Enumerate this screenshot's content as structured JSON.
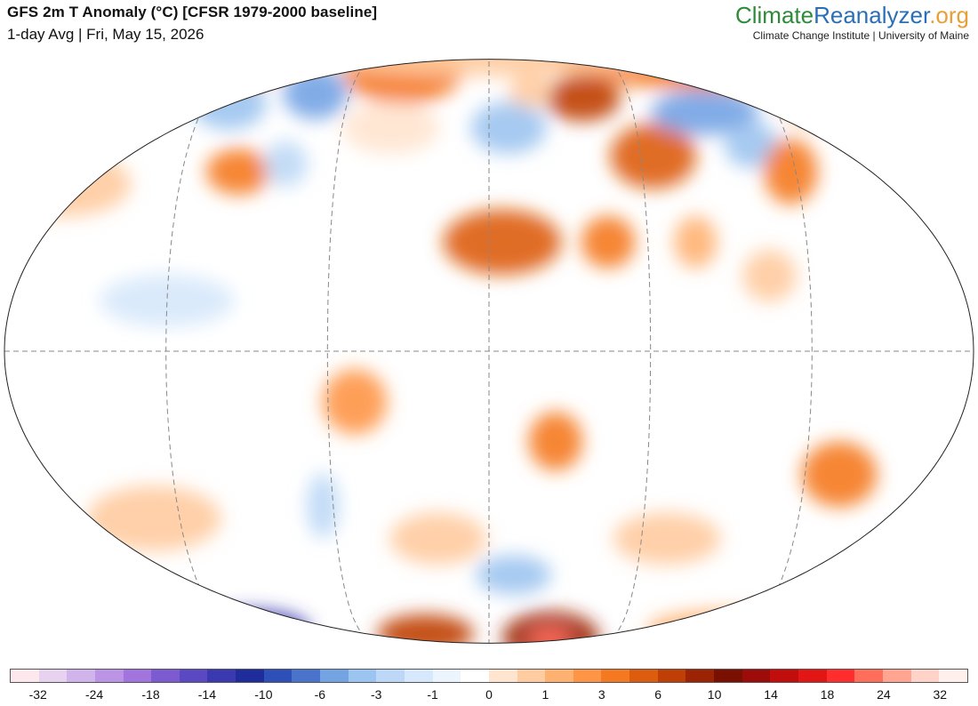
{
  "header": {
    "title": "GFS 2m T Anomaly (°C) [CFSR 1979-2000 baseline]",
    "subtitle": "1-day Avg | Fri, May 15, 2026"
  },
  "brand": {
    "name_part1": "Climate",
    "name_part2": "Reanalyzer",
    "name_part3": ".org",
    "tagline": "Climate Change Institute | University of Maine",
    "colors": {
      "part1": "#2e8b3a",
      "part2": "#2a6fb5",
      "part3": "#e8a036"
    }
  },
  "map": {
    "projection": "winkel-tripel-like",
    "graticule": "dashed",
    "background_anomaly_color": "#ffffff"
  },
  "legend": {
    "colors": [
      "#fde8ee",
      "#e7d2f0",
      "#d2b4ec",
      "#bb94e6",
      "#a274de",
      "#7c5bd0",
      "#5a49c2",
      "#3b39b0",
      "#1e2c9c",
      "#2f4fb8",
      "#4a74cc",
      "#74a3e4",
      "#9cc4f0",
      "#bcd8f6",
      "#d6e8fb",
      "#ecf4fe",
      "#ffffff",
      "#ffe4cf",
      "#ffcba0",
      "#ffb172",
      "#fe9546",
      "#f57920",
      "#dd5c0e",
      "#bf3f07",
      "#9c2405",
      "#7a1002",
      "#9e0b0b",
      "#c20d0d",
      "#e31616",
      "#ff2d2d",
      "#ff6d5b",
      "#ffa592",
      "#ffd3c8",
      "#fff0ee"
    ],
    "labels": [
      "-32",
      "-24",
      "-18",
      "-14",
      "-10",
      "-6",
      "-3",
      "-1",
      "0",
      "1",
      "3",
      "6",
      "10",
      "14",
      "18",
      "24",
      "32"
    ]
  },
  "regions": [
    {
      "name": "greenland",
      "lon": -40,
      "lat": 73,
      "rx": 22,
      "ry": 10,
      "color": "#f57920"
    },
    {
      "name": "arctic-siberia",
      "lon": 110,
      "lat": 80,
      "rx": 60,
      "ry": 8,
      "color": "#f57920"
    },
    {
      "name": "arctic-alaska",
      "lon": -150,
      "lat": 78,
      "rx": 40,
      "ry": 8,
      "color": "#fe9546"
    },
    {
      "name": "arctic-central",
      "lon": 0,
      "lat": 84,
      "rx": 60,
      "ry": 5,
      "color": "#ffcba0"
    },
    {
      "name": "canada-east",
      "lon": -75,
      "lat": 62,
      "rx": 12,
      "ry": 8,
      "color": "#74a3e4"
    },
    {
      "name": "canada-west",
      "lon": -110,
      "lat": 58,
      "rx": 14,
      "ry": 8,
      "color": "#9cc4f0"
    },
    {
      "name": "us-plains",
      "lon": -98,
      "lat": 38,
      "rx": 12,
      "ry": 7,
      "color": "#f57920"
    },
    {
      "name": "us-east",
      "lon": -80,
      "lat": 40,
      "rx": 8,
      "ry": 7,
      "color": "#bcd8f6"
    },
    {
      "name": "n-atlantic",
      "lon": -40,
      "lat": 50,
      "rx": 18,
      "ry": 8,
      "color": "#ffe4cf"
    },
    {
      "name": "russia-west",
      "lon": 40,
      "lat": 60,
      "rx": 14,
      "ry": 7,
      "color": "#bf3f07"
    },
    {
      "name": "europe",
      "lon": 8,
      "lat": 50,
      "rx": 14,
      "ry": 8,
      "color": "#9cc4f0"
    },
    {
      "name": "scandinavia",
      "lon": 18,
      "lat": 63,
      "rx": 8,
      "ry": 5,
      "color": "#ffcba0"
    },
    {
      "name": "central-asia",
      "lon": 65,
      "lat": 42,
      "rx": 16,
      "ry": 10,
      "color": "#dd5c0e"
    },
    {
      "name": "siberia-cold",
      "lon": 90,
      "lat": 55,
      "rx": 20,
      "ry": 7,
      "color": "#74a3e4"
    },
    {
      "name": "mongolia",
      "lon": 105,
      "lat": 45,
      "rx": 10,
      "ry": 7,
      "color": "#9cc4f0"
    },
    {
      "name": "china-east",
      "lon": 118,
      "lat": 38,
      "rx": 10,
      "ry": 10,
      "color": "#f57920"
    },
    {
      "name": "far-east",
      "lon": 140,
      "lat": 60,
      "rx": 14,
      "ry": 8,
      "color": "#ffb172"
    },
    {
      "name": "sahara",
      "lon": 5,
      "lat": 22,
      "rx": 22,
      "ry": 10,
      "color": "#dd5c0e"
    },
    {
      "name": "arabia",
      "lon": 45,
      "lat": 22,
      "rx": 10,
      "ry": 8,
      "color": "#f57920"
    },
    {
      "name": "india",
      "lon": 78,
      "lat": 22,
      "rx": 8,
      "ry": 8,
      "color": "#ffb172"
    },
    {
      "name": "se-asia",
      "lon": 105,
      "lat": 15,
      "rx": 10,
      "ry": 8,
      "color": "#ffcba0"
    },
    {
      "name": "africa-south",
      "lon": 25,
      "lat": -18,
      "rx": 10,
      "ry": 9,
      "color": "#f57920"
    },
    {
      "name": "brazil",
      "lon": -50,
      "lat": -10,
      "rx": 12,
      "ry": 10,
      "color": "#fe9546"
    },
    {
      "name": "argentina",
      "lon": -64,
      "lat": -32,
      "rx": 6,
      "ry": 10,
      "color": "#bcd8f6"
    },
    {
      "name": "australia",
      "lon": 133,
      "lat": -25,
      "rx": 14,
      "ry": 10,
      "color": "#f57920"
    },
    {
      "name": "s-pacific",
      "lon": -130,
      "lat": -35,
      "rx": 25,
      "ry": 10,
      "color": "#ffcba0"
    },
    {
      "name": "s-atlantic",
      "lon": -20,
      "lat": -40,
      "rx": 18,
      "ry": 8,
      "color": "#ffcba0"
    },
    {
      "name": "s-indian-cold",
      "lon": 10,
      "lat": -50,
      "rx": 14,
      "ry": 6,
      "color": "#9cc4f0"
    },
    {
      "name": "s-indian",
      "lon": 70,
      "lat": -40,
      "rx": 20,
      "ry": 8,
      "color": "#ffcba0"
    },
    {
      "name": "n-pacific",
      "lon": -165,
      "lat": 35,
      "rx": 25,
      "ry": 10,
      "color": "#ffcba0"
    },
    {
      "name": "e-pacific",
      "lon": -120,
      "lat": 10,
      "rx": 25,
      "ry": 8,
      "color": "#d6e8fb"
    },
    {
      "name": "antarctic-west-cold",
      "lon": -110,
      "lat": -72,
      "rx": 22,
      "ry": 6,
      "color": "#3b39b0"
    },
    {
      "name": "antarctic-warm1",
      "lon": -30,
      "lat": -75,
      "rx": 18,
      "ry": 6,
      "color": "#bf3f07"
    },
    {
      "name": "antarctic-warm2",
      "lon": 30,
      "lat": -78,
      "rx": 18,
      "ry": 8,
      "color": "#9c2405"
    },
    {
      "name": "antarctic-hot",
      "lon": 30,
      "lat": -80,
      "rx": 8,
      "ry": 4,
      "color": "#ff6d5b"
    },
    {
      "name": "antarctic-east",
      "lon": 110,
      "lat": -72,
      "rx": 30,
      "ry": 6,
      "color": "#ffb172"
    },
    {
      "name": "southern-ocean-cold",
      "lon": -150,
      "lat": -62,
      "rx": 22,
      "ry": 5,
      "color": "#74a3e4"
    }
  ]
}
